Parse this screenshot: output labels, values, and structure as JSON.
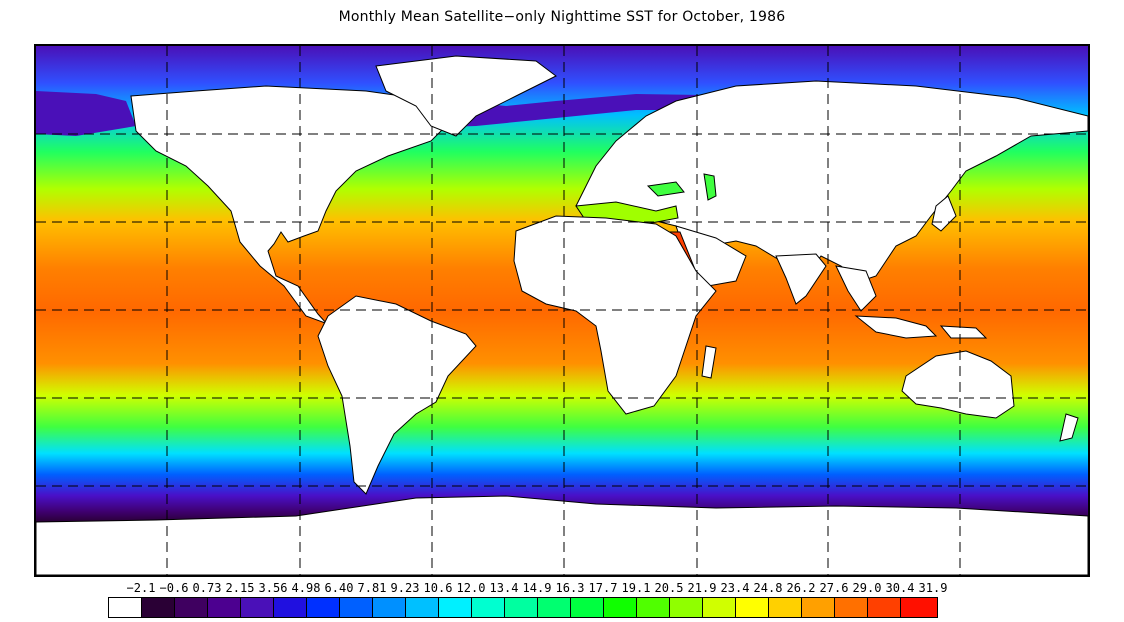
{
  "title": "Monthly Mean Satellite−only Nighttime SST for October, 1986",
  "colorbar": {
    "tick_labels": [
      "−2.1",
      "−0.6",
      "0.73",
      "2.15",
      "3.56",
      "4.98",
      "6.40",
      "7.81",
      "9.23",
      "10.6",
      "12.0",
      "13.4",
      "14.9",
      "16.3",
      "17.7",
      "19.1",
      "20.5",
      "21.9",
      "23.4",
      "24.8",
      "26.2",
      "27.6",
      "29.0",
      "30.4",
      "31.9"
    ],
    "colors": [
      "#ffffff",
      "#2a0035",
      "#3f0060",
      "#4c0090",
      "#4a10b8",
      "#2010e0",
      "#0030ff",
      "#0060ff",
      "#0090ff",
      "#00c0ff",
      "#00f0ff",
      "#00ffd0",
      "#00ffa0",
      "#00ff70",
      "#00ff40",
      "#10ff00",
      "#50ff00",
      "#90ff00",
      "#d0ff00",
      "#ffff00",
      "#ffd000",
      "#ffa000",
      "#ff7000",
      "#ff4000",
      "#ff1000"
    ]
  },
  "map": {
    "projection": "equirectangular",
    "gridlines": "dashed",
    "grid_lon_spacing_deg": 60,
    "grid_lat_spacing_deg": 30,
    "land_color": "#ffffff",
    "coastline_color": "#000000"
  }
}
